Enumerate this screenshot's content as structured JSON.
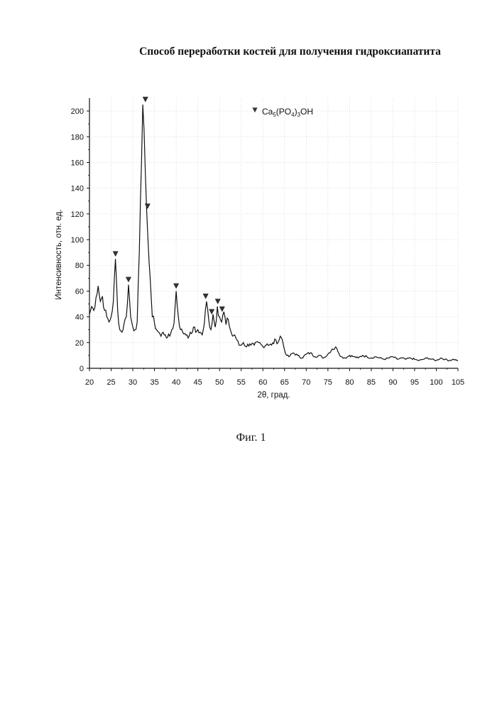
{
  "document": {
    "title": "Способ переработки костей для получения гидроксиапатита",
    "caption": "Фиг. 1"
  },
  "chart_data": {
    "type": "line",
    "xlabel": "2θ, град.",
    "ylabel": "Интенсивность, отн. ед.",
    "xlim": [
      20,
      105
    ],
    "ylim": [
      0,
      210
    ],
    "xticks": [
      20,
      25,
      30,
      35,
      40,
      45,
      50,
      55,
      60,
      65,
      70,
      75,
      80,
      85,
      90,
      95,
      100,
      105
    ],
    "yticks": [
      0,
      20,
      40,
      60,
      80,
      100,
      120,
      140,
      160,
      180,
      200
    ],
    "grid": true,
    "legend": {
      "placement": "top-center",
      "marker": "down-triangle",
      "label_parts": [
        "Ca",
        "5",
        "(PO",
        "4",
        ")",
        "3",
        "OH"
      ]
    },
    "series": [
      {
        "x": [
          20,
          20.5,
          21,
          21.5,
          22,
          22.5,
          23,
          23.5,
          24,
          24.5,
          25,
          25.5,
          26,
          26.5,
          27,
          27.5,
          28,
          28.5,
          29,
          29.5,
          30,
          30.5,
          31,
          31.5,
          32,
          32.3,
          32.6,
          32.9,
          33.2,
          33.5,
          34,
          34.5,
          35,
          35.5,
          36,
          36.5,
          37,
          37.5,
          38,
          38.5,
          39,
          39.5,
          40,
          40.5,
          41,
          41.5,
          42,
          42.5,
          43,
          43.5,
          44,
          44.5,
          45,
          45.5,
          46,
          46.5,
          47,
          47.5,
          48,
          48.5,
          49,
          49.5,
          50,
          50.5,
          51,
          51.5,
          52,
          52.5,
          53,
          53.5,
          54,
          54.5,
          55,
          55.5,
          56,
          57,
          58,
          59,
          60,
          61,
          62,
          63,
          63.5,
          64,
          64.5,
          65,
          65.5,
          66,
          67,
          68,
          69,
          70,
          71,
          72,
          73,
          74,
          75,
          76,
          77,
          78,
          79,
          80,
          81,
          82,
          83,
          84,
          85,
          86,
          87,
          88,
          89,
          90,
          91,
          92,
          93,
          94,
          95,
          96,
          97,
          98,
          99,
          100,
          101,
          102,
          103,
          104,
          105
        ],
        "y": [
          42,
          48,
          45,
          55,
          64,
          52,
          56,
          45,
          40,
          36,
          40,
          52,
          85,
          45,
          30,
          28,
          35,
          40,
          65,
          40,
          32,
          30,
          36,
          90,
          160,
          205,
          185,
          150,
          122,
          100,
          70,
          40,
          35,
          30,
          28,
          25,
          28,
          26,
          24,
          25,
          30,
          35,
          60,
          40,
          30,
          28,
          27,
          26,
          25,
          27,
          32,
          28,
          30,
          28,
          26,
          35,
          52,
          38,
          30,
          42,
          32,
          48,
          40,
          36,
          44,
          34,
          38,
          30,
          25,
          26,
          22,
          18,
          18,
          20,
          17,
          19,
          18,
          20,
          17,
          19,
          18,
          22,
          20,
          25,
          22,
          14,
          10,
          9,
          12,
          10,
          8,
          11,
          12,
          9,
          10,
          8,
          11,
          15,
          16,
          9,
          8,
          10,
          9,
          8,
          10,
          9,
          8,
          9,
          8,
          7,
          8,
          9,
          7,
          8,
          7,
          8,
          7,
          6,
          7,
          8,
          7,
          6,
          8,
          7,
          6,
          7,
          6
        ]
      }
    ],
    "peak_markers": [
      {
        "x": 26,
        "y": 85
      },
      {
        "x": 29,
        "y": 65
      },
      {
        "x": 32.9,
        "y": 205
      },
      {
        "x": 33.4,
        "y": 122
      },
      {
        "x": 40,
        "y": 60
      },
      {
        "x": 46.8,
        "y": 52
      },
      {
        "x": 48.2,
        "y": 40
      },
      {
        "x": 49.6,
        "y": 48
      },
      {
        "x": 50.6,
        "y": 42
      }
    ]
  }
}
